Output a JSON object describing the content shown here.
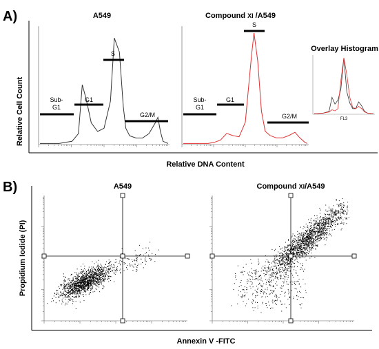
{
  "panel_a": {
    "letter": "A)",
    "ylabel": "Relative Cell Count",
    "xlabel": "Relative DNA Content",
    "left_title": "A549",
    "right_title_pre": "Compound ",
    "right_title_bold": "XI",
    "right_title_post": " /A549",
    "gates_left": {
      "subg1_line1": "Sub-",
      "subg1_line2": "G1",
      "g1": "G1",
      "s": "S",
      "g2m": "G2/M"
    },
    "gates_right": {
      "subg1_line1": "Sub-",
      "subg1_line2": "G1",
      "g1": "G1",
      "s": "S",
      "g2m": "G2/M"
    },
    "overlay_title": "Overlay Histogram",
    "overlay_xlabel": "FL3"
  },
  "panel_b": {
    "letter": "B)",
    "ylabel": "Propidium Iodide (PI)",
    "xlabel": "Annexin V -FITC",
    "left_title": "A549",
    "right_title_pre": "Compound ",
    "right_title_bold": "XI",
    "right_title_post": "/A549"
  },
  "chart_data": [
    {
      "type": "area",
      "title": "A549",
      "series": [
        {
          "name": "",
          "color": "#333333",
          "x": [
            0,
            5,
            10,
            15,
            20,
            25,
            30,
            33,
            36,
            40,
            45,
            50,
            55,
            58,
            62,
            65,
            67,
            70,
            75,
            80,
            85,
            90,
            92,
            94,
            96,
            100
          ],
          "values": [
            1,
            1,
            1,
            1,
            2,
            3,
            10,
            55,
            42,
            20,
            12,
            15,
            40,
            98,
            85,
            35,
            15,
            8,
            6,
            6,
            10,
            20,
            25,
            12,
            3,
            1
          ]
        }
      ]
    },
    {
      "type": "area",
      "title": "Compound XI /A549",
      "series": [
        {
          "name": "",
          "color": "#e03030",
          "x": [
            0,
            5,
            10,
            15,
            20,
            25,
            30,
            35,
            40,
            45,
            50,
            55,
            57,
            60,
            63,
            66,
            70,
            75,
            80,
            85,
            90,
            94,
            98,
            100
          ],
          "values": [
            1,
            1,
            1,
            1,
            1,
            2,
            4,
            10,
            8,
            7,
            20,
            80,
            100,
            75,
            30,
            12,
            8,
            6,
            6,
            8,
            11,
            6,
            2,
            1
          ]
        }
      ]
    },
    {
      "type": "line",
      "title": "Overlay Histogram",
      "xlabel": "FL3",
      "series": [
        {
          "name": "",
          "color": "#333333",
          "x": [
            0,
            15,
            25,
            30,
            35,
            40,
            45,
            50,
            55,
            60,
            65,
            70,
            75,
            80,
            85,
            90,
            100
          ],
          "values": [
            1,
            2,
            5,
            30,
            18,
            25,
            45,
            100,
            40,
            20,
            10,
            10,
            22,
            15,
            5,
            2,
            1
          ]
        },
        {
          "name": "",
          "color": "#e03030",
          "x": [
            0,
            15,
            25,
            30,
            35,
            40,
            45,
            50,
            55,
            60,
            65,
            70,
            75,
            80,
            85,
            90,
            100
          ],
          "values": [
            1,
            2,
            4,
            8,
            6,
            10,
            60,
            100,
            70,
            30,
            12,
            10,
            14,
            10,
            4,
            2,
            1
          ]
        }
      ]
    },
    {
      "type": "scatter",
      "title": "A549",
      "xlabel": "Annexin V -FITC",
      "ylabel": "Propidium Iodide (PI)",
      "quadrant_divider": {
        "x": 0.58,
        "y": 0.49
      },
      "population": {
        "cluster_center": [
          0.28,
          0.31
        ],
        "distribution": "main cluster lower-left quadrant with a diagonal tail toward the upper-right"
      }
    },
    {
      "type": "scatter",
      "title": "Compound XI/A549",
      "xlabel": "Annexin V -FITC",
      "ylabel": "Propidium Iodide (PI)",
      "quadrant_divider": {
        "x": 0.58,
        "y": 0.49
      },
      "population": {
        "cluster_center": [
          0.65,
          0.58
        ],
        "distribution": "dense diagonal band from lower-left to upper-right, concentrated in the upper-right quadrant"
      }
    }
  ]
}
